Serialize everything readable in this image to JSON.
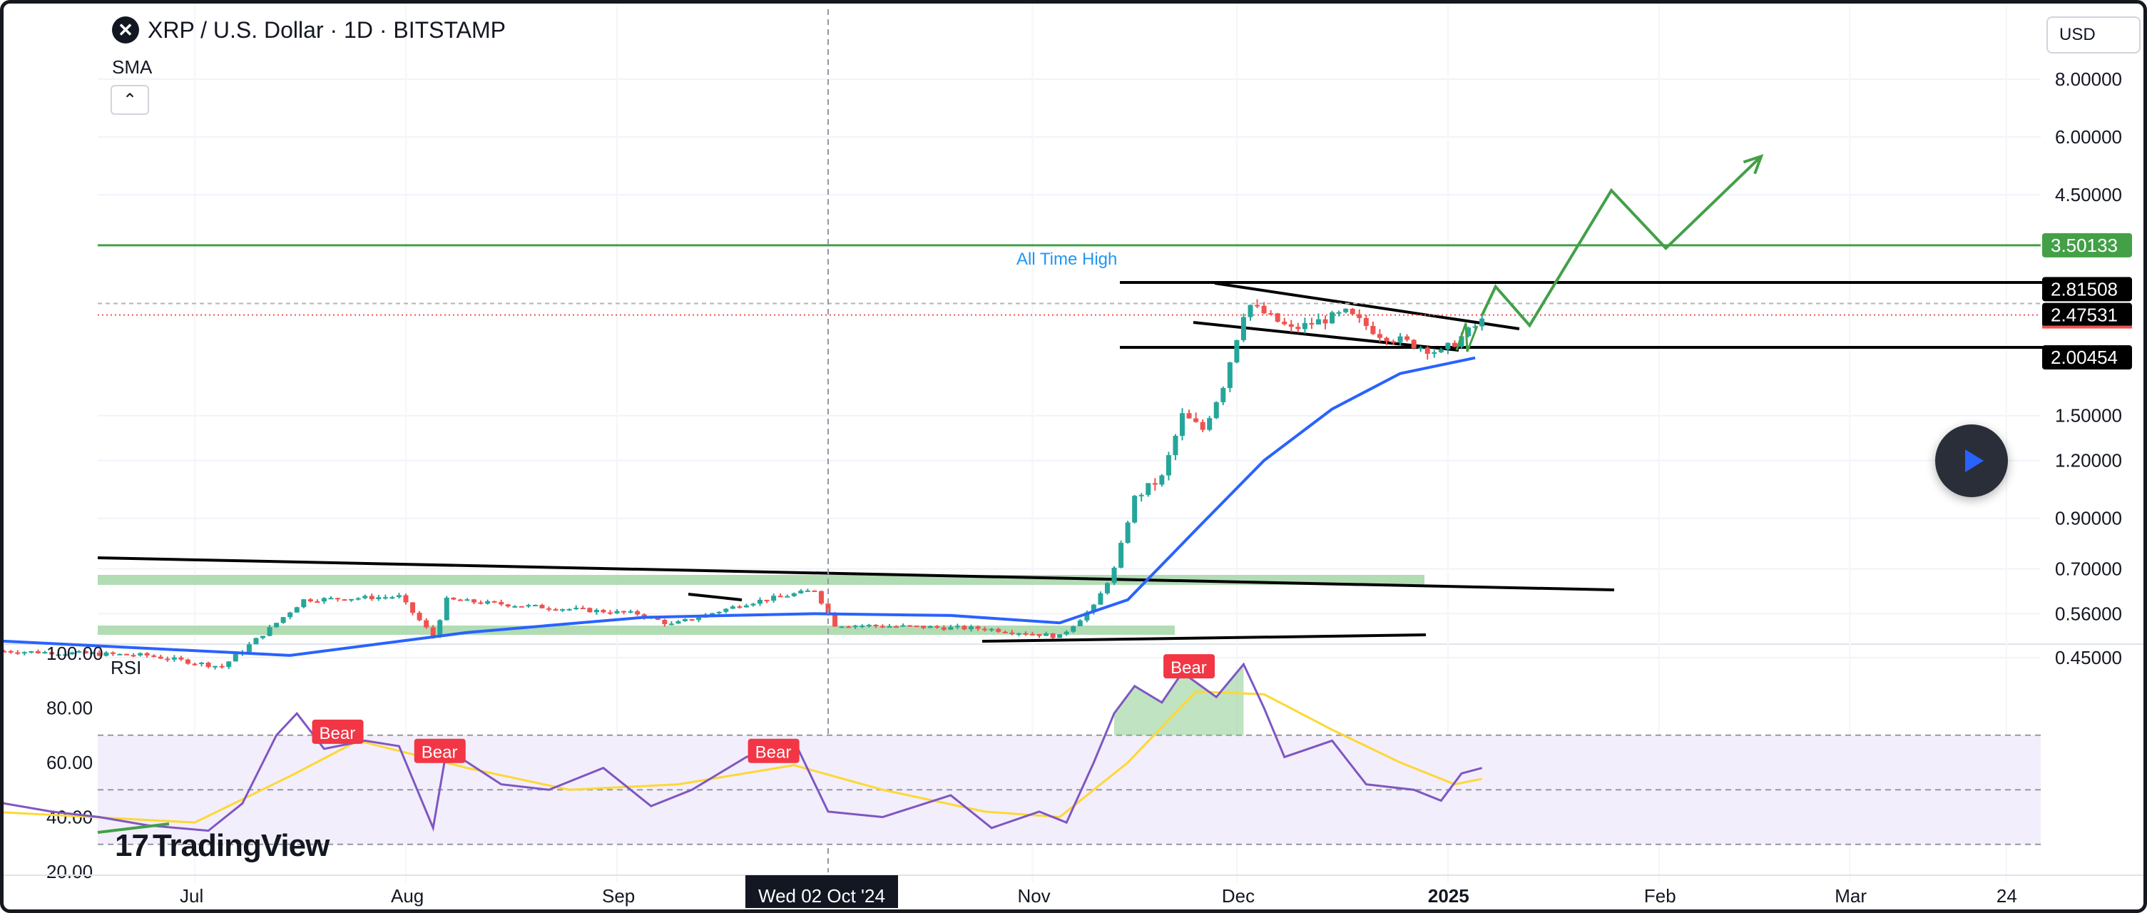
{
  "header": {
    "logo_glyph": "✕",
    "title": "XRP / U.S. Dollar · 1D · BITSTAMP",
    "indicator": "SMA",
    "collapse_icon": "chevron-up-icon",
    "currency": "USD"
  },
  "watermark": {
    "mark": "17",
    "text": "TradingView"
  },
  "colors": {
    "up": "#26a69a",
    "down": "#ef5350",
    "sma": "#2962ff",
    "projection": "#43a047",
    "ath_line": "#43a047",
    "ath_text": "#2196f3",
    "rsi_line": "#7e57c2",
    "rsi_ma": "#fdd835",
    "bear_badge": "#f23645",
    "zone": "#a5d6a7"
  },
  "chart_data": [
    {
      "type": "candlestick",
      "title": "XRP / U.S. Dollar · 1D · BITSTAMP",
      "y_scale": "log",
      "y_ticks": [
        "8.00000",
        "6.00000",
        "4.50000",
        "1.50000",
        "1.20000",
        "0.90000",
        "0.70000",
        "0.56000",
        "0.45000"
      ],
      "x_ticks": [
        "Jul",
        "Aug",
        "Sep",
        "Nov",
        "Dec",
        "2025",
        "Feb",
        "Mar",
        "24"
      ],
      "crosshair_label": "Wed 02 Oct '24",
      "price_labels": [
        {
          "text": "3.50133",
          "value": 3.50133,
          "style": "green"
        },
        {
          "text": "2.81508",
          "value": 2.81508,
          "style": "black"
        },
        {
          "text": "2.47531",
          "value": 2.47531,
          "style": "black-red"
        },
        {
          "text": "2.00454",
          "value": 2.00454,
          "style": "black"
        }
      ],
      "annotations": [
        {
          "text": "All Time High",
          "value": 3.50133
        }
      ],
      "keyframes": [
        {
          "x": "2024-06-03",
          "y": 0.465
        },
        {
          "x": "2024-06-24",
          "y": 0.455
        },
        {
          "x": "2024-07-05",
          "y": 0.43
        },
        {
          "x": "2024-07-12",
          "y": 0.52
        },
        {
          "x": "2024-07-17",
          "y": 0.6
        },
        {
          "x": "2024-07-31",
          "y": 0.61
        },
        {
          "x": "2024-08-05",
          "y": 0.5
        },
        {
          "x": "2024-08-07",
          "y": 0.6
        },
        {
          "x": "2024-08-20",
          "y": 0.58
        },
        {
          "x": "2024-09-04",
          "y": 0.56
        },
        {
          "x": "2024-09-09",
          "y": 0.53
        },
        {
          "x": "2024-09-20",
          "y": 0.59
        },
        {
          "x": "2024-09-30",
          "y": 0.63
        },
        {
          "x": "2024-10-03",
          "y": 0.53
        },
        {
          "x": "2024-10-25",
          "y": 0.52
        },
        {
          "x": "2024-11-05",
          "y": 0.5
        },
        {
          "x": "2024-11-10",
          "y": 0.58
        },
        {
          "x": "2024-11-13",
          "y": 0.7
        },
        {
          "x": "2024-11-16",
          "y": 1.0
        },
        {
          "x": "2024-11-20",
          "y": 1.1
        },
        {
          "x": "2024-11-23",
          "y": 1.5
        },
        {
          "x": "2024-11-26",
          "y": 1.4
        },
        {
          "x": "2024-11-29",
          "y": 1.75
        },
        {
          "x": "2024-12-02",
          "y": 2.5
        },
        {
          "x": "2024-12-03",
          "y": 2.6
        },
        {
          "x": "2024-12-09",
          "y": 2.3
        },
        {
          "x": "2024-12-17",
          "y": 2.5
        },
        {
          "x": "2024-12-22",
          "y": 2.25
        },
        {
          "x": "2024-12-31",
          "y": 2.05
        },
        {
          "x": "2025-01-06",
          "y": 2.4
        }
      ],
      "sma": [
        {
          "x": "2024-06-01",
          "y": 0.49
        },
        {
          "x": "2024-07-15",
          "y": 0.455
        },
        {
          "x": "2024-08-10",
          "y": 0.51
        },
        {
          "x": "2024-09-05",
          "y": 0.55
        },
        {
          "x": "2024-09-30",
          "y": 0.56
        },
        {
          "x": "2024-10-20",
          "y": 0.555
        },
        {
          "x": "2024-11-05",
          "y": 0.535
        },
        {
          "x": "2024-11-15",
          "y": 0.6
        },
        {
          "x": "2024-11-25",
          "y": 0.85
        },
        {
          "x": "2024-12-05",
          "y": 1.2
        },
        {
          "x": "2024-12-15",
          "y": 1.55
        },
        {
          "x": "2024-12-25",
          "y": 1.85
        },
        {
          "x": "2025-01-05",
          "y": 2.0
        }
      ],
      "projection": [
        {
          "x": "2025-01-06",
          "y": 2.47
        },
        {
          "x": "2025-01-08",
          "y": 2.85
        },
        {
          "x": "2025-01-13",
          "y": 2.35
        },
        {
          "x": "2025-01-25",
          "y": 4.6
        },
        {
          "x": "2025-02-02",
          "y": 3.45
        },
        {
          "x": "2025-02-16",
          "y": 5.45
        }
      ]
    },
    {
      "type": "line",
      "title": "RSI",
      "y_ticks": [
        "100.00",
        "80.00",
        "60.00",
        "40.00",
        "20.00"
      ],
      "ylim": [
        20,
        100
      ],
      "band": [
        30,
        70
      ],
      "midline": 50,
      "rsi": [
        {
          "x": "2024-06-01",
          "y": 50
        },
        {
          "x": "2024-06-03",
          "y": 45
        },
        {
          "x": "2024-06-10",
          "y": 42
        },
        {
          "x": "2024-06-17",
          "y": 40
        },
        {
          "x": "2024-06-24",
          "y": 37
        },
        {
          "x": "2024-07-03",
          "y": 35
        },
        {
          "x": "2024-07-08",
          "y": 45
        },
        {
          "x": "2024-07-13",
          "y": 70
        },
        {
          "x": "2024-07-16",
          "y": 78
        },
        {
          "x": "2024-07-20",
          "y": 65
        },
        {
          "x": "2024-07-26",
          "y": 68
        },
        {
          "x": "2024-07-31",
          "y": 66
        },
        {
          "x": "2024-08-05",
          "y": 36
        },
        {
          "x": "2024-08-07",
          "y": 65
        },
        {
          "x": "2024-08-15",
          "y": 52
        },
        {
          "x": "2024-08-22",
          "y": 50
        },
        {
          "x": "2024-08-30",
          "y": 58
        },
        {
          "x": "2024-09-06",
          "y": 44
        },
        {
          "x": "2024-09-12",
          "y": 50
        },
        {
          "x": "2024-09-20",
          "y": 62
        },
        {
          "x": "2024-09-27",
          "y": 68
        },
        {
          "x": "2024-10-02",
          "y": 42
        },
        {
          "x": "2024-10-10",
          "y": 40
        },
        {
          "x": "2024-10-20",
          "y": 48
        },
        {
          "x": "2024-10-26",
          "y": 36
        },
        {
          "x": "2024-11-02",
          "y": 42
        },
        {
          "x": "2024-11-06",
          "y": 38
        },
        {
          "x": "2024-11-10",
          "y": 60
        },
        {
          "x": "2024-11-13",
          "y": 78
        },
        {
          "x": "2024-11-16",
          "y": 88
        },
        {
          "x": "2024-11-20",
          "y": 82
        },
        {
          "x": "2024-11-23",
          "y": 93
        },
        {
          "x": "2024-11-28",
          "y": 84
        },
        {
          "x": "2024-12-02",
          "y": 96
        },
        {
          "x": "2024-12-05",
          "y": 80
        },
        {
          "x": "2024-12-08",
          "y": 62
        },
        {
          "x": "2024-12-15",
          "y": 68
        },
        {
          "x": "2024-12-20",
          "y": 52
        },
        {
          "x": "2024-12-27",
          "y": 50
        },
        {
          "x": "2024-12-31",
          "y": 46
        },
        {
          "x": "2025-01-03",
          "y": 56
        },
        {
          "x": "2025-01-06",
          "y": 58
        }
      ],
      "rsi_ma": [
        {
          "x": "2024-06-01",
          "y": 42
        },
        {
          "x": "2024-07-01",
          "y": 38
        },
        {
          "x": "2024-07-15",
          "y": 55
        },
        {
          "x": "2024-07-25",
          "y": 68
        },
        {
          "x": "2024-08-10",
          "y": 58
        },
        {
          "x": "2024-08-25",
          "y": 50
        },
        {
          "x": "2024-09-10",
          "y": 52
        },
        {
          "x": "2024-09-27",
          "y": 59
        },
        {
          "x": "2024-10-10",
          "y": 50
        },
        {
          "x": "2024-10-25",
          "y": 42
        },
        {
          "x": "2024-11-05",
          "y": 40
        },
        {
          "x": "2024-11-15",
          "y": 60
        },
        {
          "x": "2024-11-25",
          "y": 86
        },
        {
          "x": "2024-12-05",
          "y": 85
        },
        {
          "x": "2024-12-15",
          "y": 72
        },
        {
          "x": "2024-12-25",
          "y": 60
        },
        {
          "x": "2025-01-02",
          "y": 52
        },
        {
          "x": "2025-01-06",
          "y": 54
        }
      ],
      "divergence_labels": [
        {
          "text": "Bear",
          "x": "2024-07-22",
          "y": 71
        },
        {
          "text": "Bear",
          "x": "2024-08-06",
          "y": 64
        },
        {
          "text": "Bear",
          "x": "2024-09-24",
          "y": 64
        },
        {
          "text": "Bear",
          "x": "2024-11-24",
          "y": 95
        }
      ]
    }
  ]
}
